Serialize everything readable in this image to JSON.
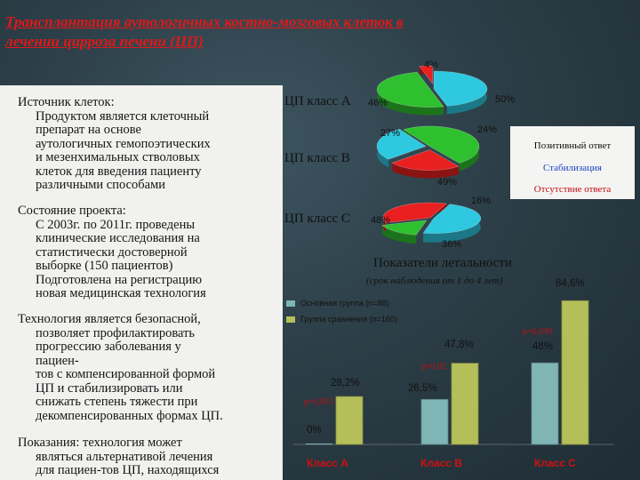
{
  "title_lines": [
    "Трансплантация аутологичных костно-мозговых клеток в",
    "лечении цирроза печени (ЦП)"
  ],
  "blocks": [
    {
      "head": "Источник клеток:",
      "lines": [
        "Продуктом является клеточный",
        "препарат на основе",
        "аутологичных гемопоэтических",
        "и мезенхимальных стволовых",
        "клеток для введения пациенту",
        "различными способами"
      ]
    },
    {
      "head": "Состояние проекта:",
      "lines": [
        "С 2003г. по 2011г. проведены",
        "клинические исследования на",
        "статистически достоверной",
        "выборке (150 пациентов)",
        "Подготовлена на регистрацию",
        "новая медицинская технология"
      ]
    },
    {
      "head": "Технология является безопасной,",
      "lines": [
        "позволяет профилактировать",
        "прогрессию заболевания у",
        "пациен-",
        "тов с компенсированной формой",
        "ЦП и стабилизировать или",
        "снижать степень тяжести при",
        "декомпенсированных формах ЦП."
      ]
    },
    {
      "head": "Показания: технология может",
      "lines": [
        "являться альтернативой лечения",
        "для пациен-тов ЦП, находящихся"
      ]
    }
  ],
  "chart_data": [
    {
      "type": "pie",
      "title": "ЦП класс А",
      "categories": [
        "Позитивный ответ",
        "Стабилизация",
        "Отсутствие ответа"
      ],
      "values": [
        46,
        50,
        4
      ],
      "labels": [
        "46%",
        "50%",
        "4%"
      ],
      "colors": [
        "#2ec8e0",
        "#2fc02f",
        "#e82020"
      ]
    },
    {
      "type": "pie",
      "title": "ЦП класс В",
      "categories": [
        "Позитивный ответ",
        "Стабилизация",
        "Отсутствие ответа"
      ],
      "values": [
        27,
        49,
        24
      ],
      "labels": [
        "27%",
        "49%",
        "24%"
      ],
      "colors": [
        "#2ec8e0",
        "#2fc02f",
        "#e82020"
      ]
    },
    {
      "type": "pie",
      "title": "ЦП класс С",
      "categories": [
        "Позитивный ответ",
        "Стабилизация",
        "Отсутствие ответа"
      ],
      "values": [
        48,
        16,
        36
      ],
      "labels": [
        "48%",
        "16%",
        "36%"
      ],
      "colors": [
        "#2ec8e0",
        "#2fc02f",
        "#e82020"
      ]
    },
    {
      "type": "bar",
      "title": "Показатели летальности",
      "subtitle": "(срок наблюдения от 1 до 4 лет)",
      "categories": [
        "Класс А",
        "Класс В",
        "Класс С"
      ],
      "series": [
        {
          "name": "Основная группа (n=88)",
          "values": [
            0,
            26.5,
            48
          ],
          "labels": [
            "0%",
            "26,5%",
            "48%"
          ],
          "color": "#7fb5b5"
        },
        {
          "name": "Группа сравнения (n=160)",
          "values": [
            28.2,
            47.8,
            84.6
          ],
          "labels": [
            "28,2%",
            "47,8%",
            "84,6%"
          ],
          "color": "#b5bf5a"
        }
      ],
      "pvalues": [
        "p=0,015",
        "p=0,02",
        "p=0,039"
      ],
      "ylim": [
        0,
        90
      ]
    }
  ],
  "legend": [
    "Позитивный ответ",
    "Стабилизация",
    "Отсутствие ответа"
  ],
  "legend_colors": [
    "#101010",
    "#1a40c0",
    "#c01010"
  ]
}
